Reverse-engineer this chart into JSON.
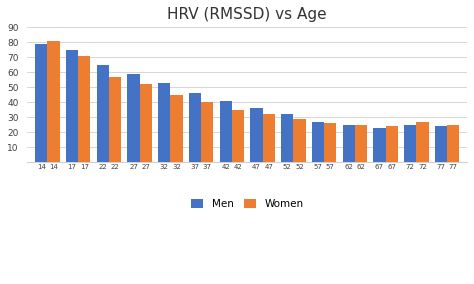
{
  "title": "HRV (RMSSD) vs Age",
  "age_groups": [
    14,
    17,
    22,
    27,
    32,
    37,
    42,
    47,
    52,
    57,
    62,
    67,
    72,
    77
  ],
  "men_values": [
    79,
    75,
    65,
    59,
    53,
    46,
    41,
    36,
    32,
    27,
    25,
    23,
    25,
    24
  ],
  "women_values": [
    81,
    71,
    57,
    52,
    45,
    40,
    35,
    32,
    29,
    26,
    25,
    24,
    27,
    25
  ],
  "men_color": "#4472C4",
  "women_color": "#ED7D31",
  "ylim": [
    0,
    90
  ],
  "yticks": [
    10,
    20,
    30,
    40,
    50,
    60,
    70,
    80,
    90
  ],
  "background_color": "#ffffff",
  "title_fontsize": 11,
  "legend_labels": [
    "Men",
    "Women"
  ]
}
